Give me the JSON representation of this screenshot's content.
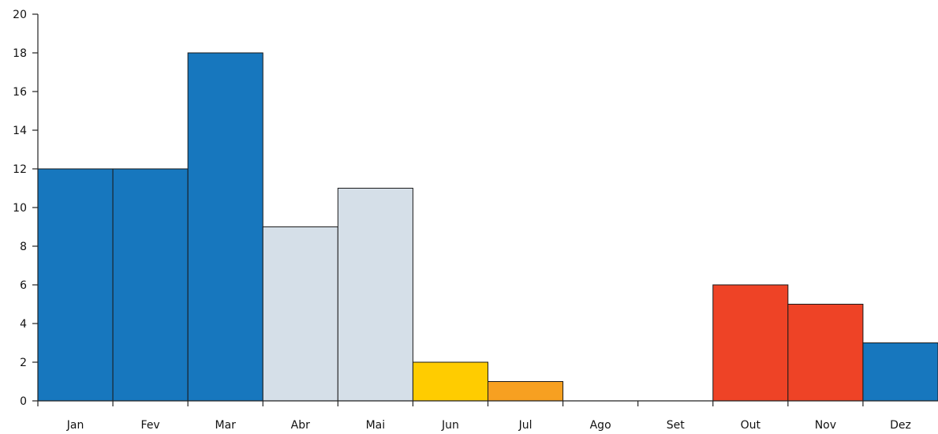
{
  "chart_data": {
    "type": "bar",
    "title": "",
    "xlabel": "",
    "ylabel": "",
    "ylim": [
      0,
      20
    ],
    "yticks": [
      0,
      2,
      4,
      6,
      8,
      10,
      12,
      14,
      16,
      18,
      20
    ],
    "grid": false,
    "categories": [
      "Jan",
      "Fev",
      "Mar",
      "Abr",
      "Mai",
      "Jun",
      "Jul",
      "Ago",
      "Set",
      "Out",
      "Nov",
      "Dez"
    ],
    "values": [
      12,
      12,
      18,
      9,
      11,
      2,
      1,
      0,
      0,
      6,
      5,
      3
    ],
    "colors": [
      "#1777be",
      "#1777be",
      "#1777be",
      "#d5dfe8",
      "#d5dfe8",
      "#ffcc00",
      "#f7a021",
      "#ffffff",
      "#ffffff",
      "#ee4326",
      "#ee4326",
      "#1777be"
    ]
  }
}
